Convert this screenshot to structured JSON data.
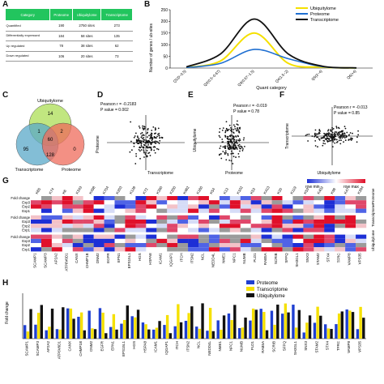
{
  "panels": {
    "A": "A",
    "B": "B",
    "C": "C",
    "D": "D",
    "E": "E",
    "F": "F",
    "G": "G",
    "H": "H"
  },
  "tableA": {
    "headers": [
      "Category",
      "Proteome",
      "Ubiquitylome",
      "Transcriptome"
    ],
    "rows": [
      {
        "label": "Quantified",
        "proteome": "190",
        "ubiq_top": "2750",
        "ubiq_bottom": "sites",
        "ubiq_extra": "",
        "transcriptome": "273"
      },
      {
        "label": "Differentially expressed",
        "proteome": "184",
        "ubiq_top": "58",
        "ubiq_bottom": "sites",
        "ubiq_extra": "",
        "transcriptome": "135"
      },
      {
        "label": "Up regulated",
        "proteome": "78",
        "ubiq_top": "38",
        "ubiq_bottom": "sites",
        "ubiq_extra": "",
        "transcriptome": "62"
      },
      {
        "label": "Down regulated",
        "proteome": "106",
        "ubiq_top": "20",
        "ubiq_bottom": "sites",
        "ubiq_extra": "",
        "transcriptome": "73"
      }
    ]
  },
  "chartB": {
    "ylabel": "Number of genes / ub-sites",
    "xlabel": "Quant category",
    "legend": [
      "Ubiquitylome",
      "Proteome",
      "Transcriptome"
    ],
    "colors": {
      "ubiq": "#f5e000",
      "prot": "#1f6fd1",
      "trans": "#111111"
    },
    "yticks": [
      "0",
      "50",
      "100",
      "150",
      "200",
      "250"
    ],
    "xticks": [
      "Q1(0~0.5)",
      "Q2(0.5~0.67)",
      "Q3(0.67~1.5)",
      "Q4(1.5~2)",
      "Q5(2~4)",
      "Q6(>4)"
    ]
  },
  "chart_data": [
    {
      "type": "line",
      "title": "",
      "xlabel": "Quant category",
      "ylabel": "Number of genes / ub-sites",
      "categories": [
        "Q1(0~0.5)",
        "Q2(0.5~0.67)",
        "Q3(0.67~1.5)",
        "Q4(1.5~2)",
        "Q5(2~4)",
        "Q6(>4)"
      ],
      "ylim": [
        0,
        250
      ],
      "series": [
        {
          "name": "Ubiquitylome",
          "values": [
            2,
            30,
            150,
            20,
            4,
            0
          ]
        },
        {
          "name": "Proteome",
          "values": [
            2,
            20,
            80,
            40,
            6,
            0
          ]
        },
        {
          "name": "Transcriptome",
          "values": [
            5,
            60,
            210,
            60,
            8,
            1
          ]
        }
      ]
    },
    {
      "type": "scatter",
      "title": "",
      "xlabel": "Transcriptome",
      "ylabel": "Proteome",
      "annotation": [
        "Pearson r = -0.2183",
        "P value = 0.002"
      ]
    },
    {
      "type": "scatter",
      "title": "",
      "xlabel": "Proteome",
      "ylabel": "Ubiquitylome",
      "annotation": [
        "Pearson r = -0.019",
        "P value = 0.78"
      ]
    },
    {
      "type": "scatter",
      "title": "",
      "xlabel": "Ubiquitylome",
      "ylabel": "Transcriptome",
      "annotation": [
        "Pearson r = -0.013",
        "P value = 0.85"
      ]
    }
  ],
  "venn": {
    "labels": {
      "ubiq": "Ubiquitylome",
      "trans": "Transcriptome",
      "prot": "Proteome"
    },
    "counts": {
      "ubiq_only": "14",
      "trans_only": "95",
      "prot_only": "0",
      "ub_tr": "1",
      "ub_pr": "2",
      "all": "60",
      "tr_pr": "128"
    }
  },
  "scatterD": {
    "ylabel": "Proteome",
    "xlabel": "Transcriptome",
    "r": "Pearson r = -0.2183",
    "p": "P value = 0.002"
  },
  "scatterE": {
    "ylabel": "Ubiquitylome",
    "xlabel": "Proteome",
    "r": "Pearson r = -0.019",
    "p": "P value = 0.78"
  },
  "scatterF": {
    "ylabel": "Transcriptome",
    "xlabel": "Ubiquitylome",
    "r": "Pearson r = -0.013",
    "p": "P value = 0.85"
  },
  "heatmap": {
    "legend_min": "row min",
    "legend_max": "row max",
    "site_labels": [
      "K65",
      "K74",
      "K6",
      "K343",
      "K458",
      "K704",
      "K203",
      "K128",
      "K72",
      "K350",
      "K200",
      "K462",
      "K160",
      "K54",
      "K13",
      "K102",
      "K53",
      "K413",
      "K20",
      "K119",
      "K53",
      "K402",
      "K98",
      "K47",
      "K394"
    ],
    "row_labels": [
      "Fold change",
      "Exp3",
      "Exp2",
      "Exp1",
      "Fold change",
      "Exp3",
      "Exp2",
      "Exp1",
      "Fold change",
      "Exp3",
      "Exp2",
      "Exp1"
    ],
    "side_labels": [
      "Ubiquitylome",
      "Transcriptome",
      "Proteome"
    ],
    "genes": [
      "SCAMP1",
      "SCAMP3",
      "AP2A2",
      "ATP6V0D1",
      "CANX",
      "CHMP1B",
      "DNM2",
      "EGFR",
      "EPN1",
      "EPS15L1",
      "HGS",
      "HSPA8",
      "ICAM1",
      "IQGAP1",
      "ITCH",
      "ITSN2",
      "NCL",
      "NEDD4L",
      "NME1",
      "NPC1",
      "NUMB",
      "PLD1",
      "RAB5A",
      "SCRIB",
      "SFPQ",
      "SH3GL1",
      "SNX3",
      "STAM2",
      "STX4",
      "TFRC",
      "VAMP8",
      "VPS35"
    ]
  },
  "barH": {
    "ylabel": "Fold change",
    "legend": [
      "Proteome",
      "Transcriptome",
      "Ubiquitylome"
    ],
    "colors": {
      "prot": "#1f3fd1",
      "trans": "#f5e000",
      "ubiq": "#111111"
    }
  }
}
